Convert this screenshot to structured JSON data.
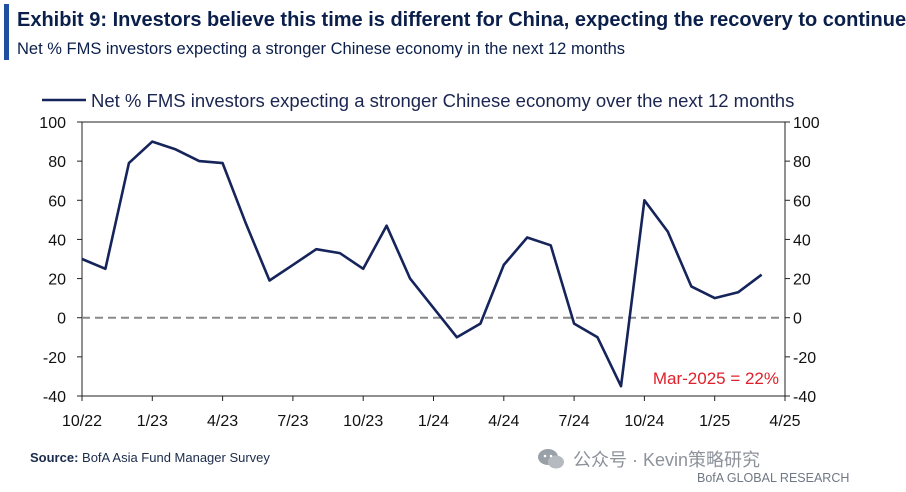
{
  "header": {
    "title": "Exhibit 9: Investors believe this time is different for China, expecting the recovery to continue",
    "subtitle": "Net % FMS investors expecting a stronger Chinese economy in the next 12 months"
  },
  "source": {
    "label": "Source:",
    "text": "BofA Asia Fund Manager Survey"
  },
  "watermark": {
    "text": "公众号 · Kevin策略研究",
    "icon": "wechat-bubbles-icon"
  },
  "footer": {
    "brand": "BofA GLOBAL RESEARCH"
  },
  "colors": {
    "accent": "#1f4fa0",
    "title": "#0b1f4b",
    "series": "#15245a",
    "annotation": "#e0202a",
    "zero_line": "#8a8a8a"
  },
  "chart_data": {
    "type": "line",
    "title": "Exhibit 9: Investors believe this time is different for China, expecting the recovery to continue",
    "subtitle": "Net % FMS investors expecting a stronger Chinese economy in the next 12 months",
    "ylim": [
      -40,
      100
    ],
    "yticks": [
      100,
      80,
      60,
      40,
      20,
      0,
      -20,
      -40
    ],
    "xtick_labels": [
      "10/22",
      "1/23",
      "4/23",
      "7/23",
      "10/23",
      "1/24",
      "4/24",
      "7/24",
      "10/24",
      "1/25",
      "4/25"
    ],
    "grid": false,
    "secondary_y_axis": true,
    "zero_line": "dashed",
    "legend_position": "top",
    "x": [
      "10/22",
      "11/22",
      "12/22",
      "1/23",
      "2/23",
      "3/23",
      "4/23",
      "5/23",
      "6/23",
      "7/23",
      "8/23",
      "9/23",
      "10/23",
      "11/23",
      "12/23",
      "1/24",
      "2/24",
      "3/24",
      "4/24",
      "5/24",
      "6/24",
      "7/24",
      "8/24",
      "9/24",
      "10/24",
      "11/24",
      "12/24",
      "1/25",
      "2/25",
      "3/25"
    ],
    "series": [
      {
        "name": "Net % FMS investors expecting a stronger Chinese economy over the next 12 months",
        "values": [
          30,
          25,
          79,
          90,
          86,
          80,
          79,
          48,
          19,
          27,
          35,
          33,
          25,
          47,
          20,
          5,
          -10,
          -3,
          27,
          41,
          37,
          -3,
          -10,
          -35,
          60,
          44,
          16,
          10,
          13,
          22
        ]
      }
    ],
    "annotation": "Mar-2025 = 22%"
  }
}
